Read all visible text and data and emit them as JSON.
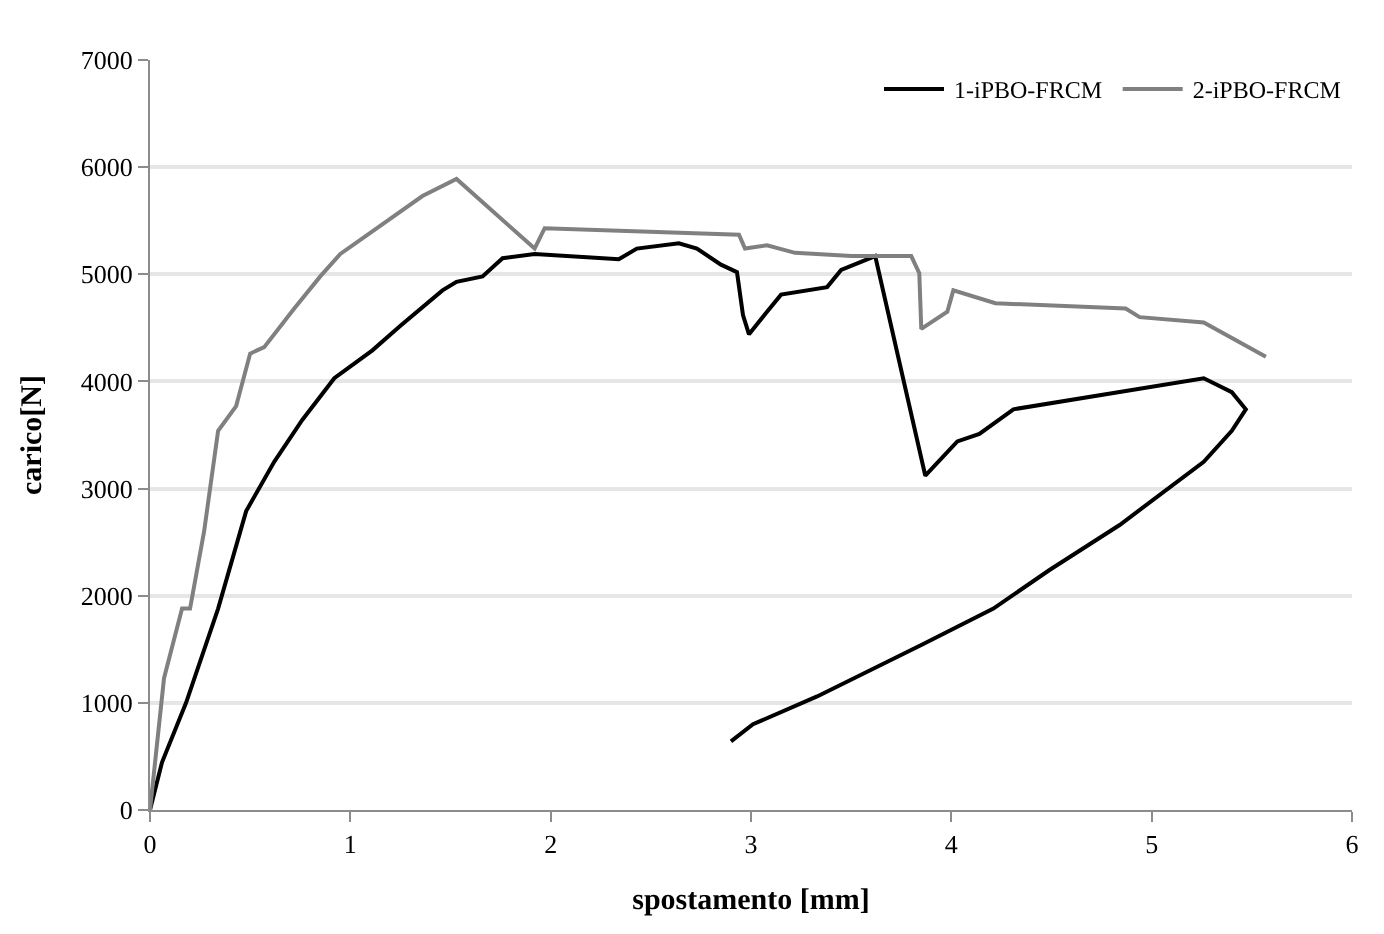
{
  "chart_data": {
    "type": "line",
    "xlabel": "spostamento [mm]",
    "ylabel": "carico[N]",
    "xlim": [
      0,
      6
    ],
    "xticks": [
      0,
      1,
      2,
      3,
      4,
      5,
      6
    ],
    "ylim": [
      0,
      7000
    ],
    "yticks": [
      0,
      1000,
      2000,
      3000,
      4000,
      5000,
      6000,
      7000
    ],
    "grid": "y",
    "legend": "top right",
    "marker": "none",
    "line_style": "solid",
    "series": [
      {
        "name": "1-iPBO-FRCM",
        "color": "#000000",
        "x": [
          0,
          0.06,
          0.18,
          0.34,
          0.48,
          0.62,
          0.76,
          0.92,
          1.11,
          1.25,
          1.46,
          1.53,
          1.66,
          1.76,
          1.92,
          2.34,
          2.43,
          2.64,
          2.73,
          2.85,
          2.93,
          2.96,
          2.99,
          3.08,
          3.15,
          3.38,
          3.45,
          3.62,
          3.87,
          4.03,
          4.14,
          4.31,
          5.26,
          5.4,
          5.47,
          5.4,
          5.26,
          4.84,
          4.49,
          4.21,
          3.86,
          3.33,
          3.01,
          2.9
        ],
        "values": [
          0,
          445,
          1000,
          1880,
          2790,
          3250,
          3640,
          4030,
          4290,
          4520,
          4850,
          4930,
          4980,
          5150,
          5190,
          5140,
          5240,
          5290,
          5240,
          5090,
          5020,
          4620,
          4440,
          4650,
          4810,
          4880,
          5040,
          5170,
          3120,
          3440,
          3510,
          3740,
          4030,
          3900,
          3740,
          3540,
          3250,
          2660,
          2240,
          1880,
          1550,
          1060,
          800,
          640
        ]
      },
      {
        "name": "2-iPBO-FRCM",
        "color": "#808080",
        "x": [
          0,
          0.07,
          0.16,
          0.2,
          0.27,
          0.34,
          0.43,
          0.5,
          0.57,
          0.72,
          0.85,
          0.95,
          1.11,
          1.36,
          1.53,
          1.92,
          1.97,
          2.94,
          2.97,
          3.08,
          3.22,
          3.5,
          3.8,
          3.84,
          3.85,
          3.98,
          4.01,
          4.22,
          4.87,
          4.94,
          5.26,
          5.57
        ],
        "values": [
          0,
          1230,
          1880,
          1880,
          2600,
          3540,
          3770,
          4260,
          4320,
          4680,
          4980,
          5190,
          5400,
          5730,
          5890,
          5240,
          5430,
          5370,
          5240,
          5270,
          5200,
          5170,
          5170,
          5010,
          4490,
          4650,
          4850,
          4730,
          4680,
          4600,
          4550,
          4230
        ]
      }
    ]
  }
}
